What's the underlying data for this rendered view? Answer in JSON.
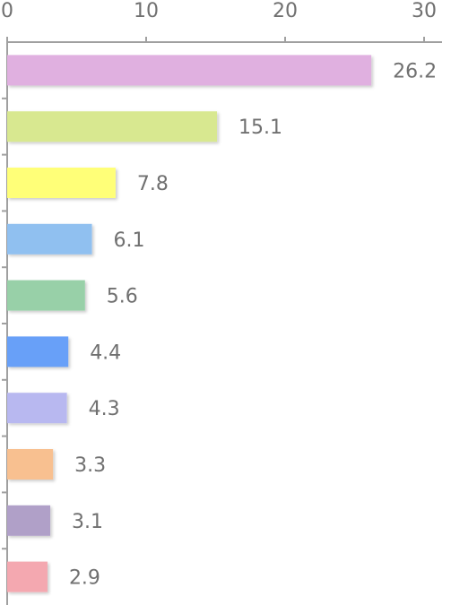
{
  "chart_data": {
    "type": "bar",
    "orientation": "horizontal",
    "categories": [
      null,
      null,
      null,
      null,
      null,
      null,
      null,
      null,
      null,
      null
    ],
    "values": [
      26.2,
      15.1,
      7.8,
      6.1,
      5.6,
      4.4,
      4.3,
      3.3,
      3.1,
      2.9
    ],
    "colors": [
      "#e0b0e0",
      "#d8e890",
      "#ffff78",
      "#90c0f0",
      "#98d0a8",
      "#68a0f8",
      "#b8b8f0",
      "#f8c090",
      "#b0a0c8",
      "#f4a8b0"
    ],
    "xlim": [
      0,
      30
    ],
    "xticks": [
      0,
      10,
      20,
      30
    ]
  }
}
